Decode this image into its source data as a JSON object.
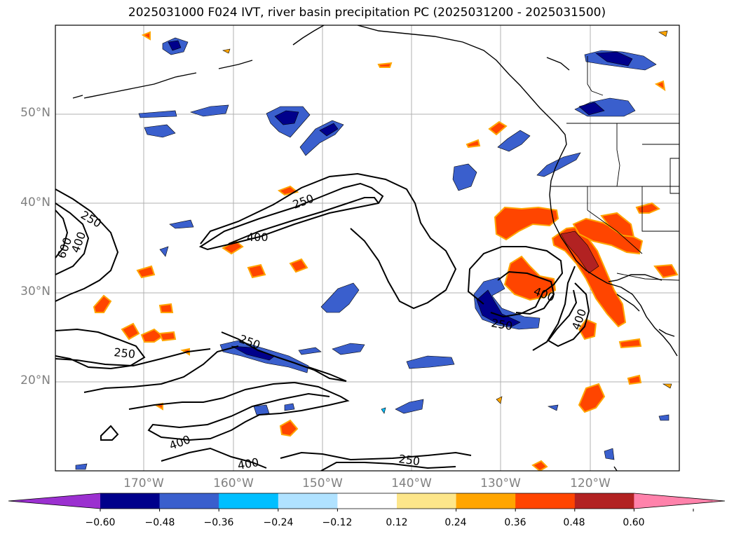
{
  "title": "2025031000 F024 IVT, river basin precipitation PC (2025031200 - 2025031500)",
  "lat_labels": [
    "50°N",
    "40°N",
    "30°N",
    "20°N"
  ],
  "lon_labels": [
    "170°W",
    "160°W",
    "150°W",
    "140°W",
    "130°W",
    "120°W"
  ],
  "colorbar": {
    "ticks": [
      "−0.60",
      "−0.48",
      "−0.36",
      "−0.24",
      "−0.12",
      "0.12",
      "0.24",
      "0.36",
      "0.48",
      "0.60"
    ],
    "colors": [
      "#9b30d0",
      "#00008b",
      "#3a5fcd",
      "#00bfff",
      "#b0e2ff",
      "#ffffff",
      "#fde68a",
      "#ffa500",
      "#ff4500",
      "#b22222",
      "#ff82ab"
    ]
  },
  "contour_labels": [
    {
      "text": "250"
    },
    {
      "text": "400"
    },
    {
      "text": "250"
    },
    {
      "text": "400"
    },
    {
      "text": "600"
    },
    {
      "text": "250"
    },
    {
      "text": "250"
    },
    {
      "text": "400"
    },
    {
      "text": "400"
    },
    {
      "text": "250"
    },
    {
      "text": "400"
    },
    {
      "text": "250"
    }
  ]
}
